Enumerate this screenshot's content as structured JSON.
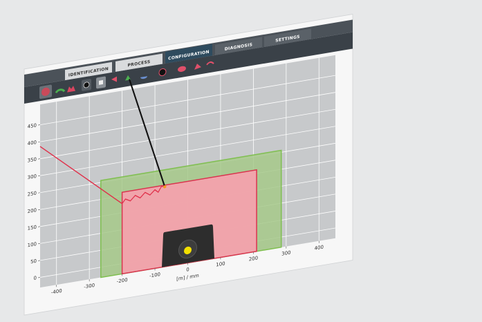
{
  "tabs": [
    "IDENTIFICATION",
    "PROCESS",
    "CONFIGURATION",
    "DIAGNOSIS",
    "SETTINGS"
  ],
  "active_tab": 2,
  "plot": {
    "xlim": [
      -450,
      450
    ],
    "ylim": [
      -30,
      510
    ],
    "xticks": [
      -400,
      -300,
      -200,
      -100,
      0,
      100,
      200,
      300,
      400
    ],
    "yticks": [
      0,
      50,
      100,
      150,
      200,
      250,
      300,
      350,
      400,
      450
    ],
    "x_label": "[m] / mm",
    "grid": true
  }
}
